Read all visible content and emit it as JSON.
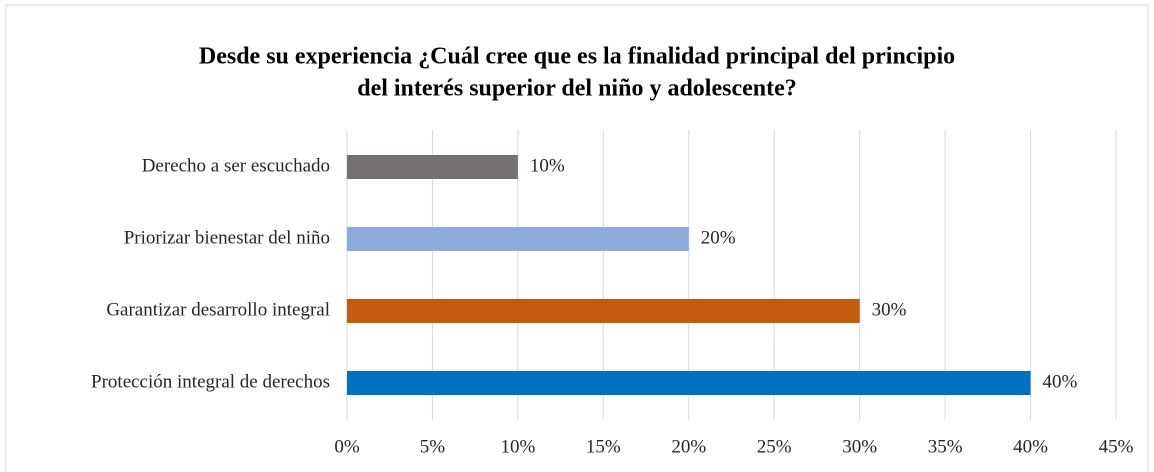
{
  "chart_data": {
    "type": "barh",
    "title": [
      "Desde su experiencia ¿Cuál cree que es la finalidad principal del principio",
      "del interés superior del niño y adolescente?"
    ],
    "categories": [
      "Derecho a ser escuchado",
      "Priorizar bienestar del niño",
      "Garantizar desarrollo integral",
      "Protección integral de derechos"
    ],
    "values": [
      10,
      20,
      30,
      40
    ],
    "value_labels": [
      "10%",
      "20%",
      "30%",
      "40%"
    ],
    "colors": [
      "#767171",
      "#8faadc",
      "#c55a11",
      "#0070c0"
    ],
    "xlim": [
      0,
      45
    ],
    "xticks": [
      {
        "value": 0,
        "label": "0%"
      },
      {
        "value": 5,
        "label": "5%"
      },
      {
        "value": 10,
        "label": "10%"
      },
      {
        "value": 15,
        "label": "15%"
      },
      {
        "value": 20,
        "label": "20%"
      },
      {
        "value": 25,
        "label": "25%"
      },
      {
        "value": 30,
        "label": "30%"
      },
      {
        "value": 35,
        "label": "35%"
      },
      {
        "value": 40,
        "label": "40%"
      },
      {
        "value": 45,
        "label": "45%"
      }
    ],
    "grid": true
  }
}
